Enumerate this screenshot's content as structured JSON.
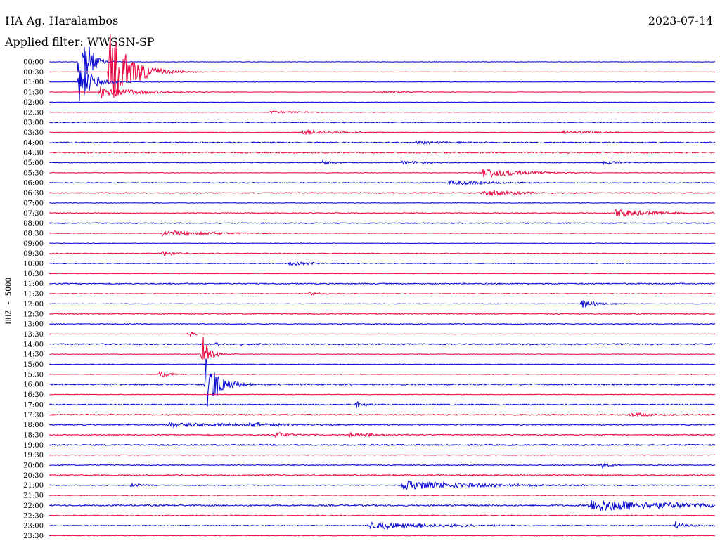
{
  "header": {
    "station": "HA Ag. Haralambos",
    "date": "2023-07-14",
    "filter": "Applied filter: WWSSN-SP"
  },
  "chart_data": {
    "type": "line",
    "title": "HA Ag. Haralambos",
    "ylabel": "HHZ - 5000",
    "colors": [
      "#0000d0",
      "#e8003c"
    ],
    "rows": [
      "00:00",
      "00:30",
      "01:00",
      "01:30",
      "02:00",
      "02:30",
      "03:00",
      "03:30",
      "04:00",
      "04:30",
      "05:00",
      "05:30",
      "06:00",
      "06:30",
      "07:00",
      "07:30",
      "08:00",
      "08:30",
      "09:00",
      "09:30",
      "10:00",
      "10:30",
      "11:00",
      "11:30",
      "12:00",
      "12:30",
      "13:00",
      "13:30",
      "14:00",
      "14:30",
      "15:00",
      "15:30",
      "16:00",
      "16:30",
      "17:00",
      "17:30",
      "18:00",
      "18:30",
      "19:00",
      "19:30",
      "20:00",
      "20:30",
      "21:00",
      "21:30",
      "22:00",
      "22:30",
      "23:00",
      "23:30"
    ],
    "noise": [
      0.3,
      0.3,
      0.3,
      0.3,
      0.3,
      0.3,
      0.6,
      0.4,
      0.8,
      1.0,
      0.5,
      0.4,
      0.6,
      0.8,
      0.4,
      0.6,
      0.7,
      0.4,
      0.4,
      0.6,
      0.5,
      0.4,
      0.8,
      0.5,
      0.4,
      0.7,
      0.6,
      0.4,
      0.9,
      0.4,
      0.5,
      0.4,
      1.0,
      0.5,
      0.8,
      0.9,
      0.8,
      0.7,
      1.0,
      0.5,
      0.6,
      0.9,
      0.6,
      0.5,
      1.0,
      0.6,
      0.6,
      0.5
    ],
    "events": [
      {
        "row": 0,
        "t": 0.045,
        "amp": 80,
        "dur": 0.012
      },
      {
        "row": 1,
        "t": 0.09,
        "amp": 60,
        "dur": 0.03
      },
      {
        "row": 2,
        "t": 0.045,
        "amp": 30,
        "dur": 0.02
      },
      {
        "row": 3,
        "t": 0.075,
        "amp": 10,
        "dur": 0.05
      },
      {
        "row": 3,
        "t": 0.5,
        "amp": 2,
        "dur": 0.04
      },
      {
        "row": 5,
        "t": 0.33,
        "amp": 2,
        "dur": 0.06
      },
      {
        "row": 7,
        "t": 0.38,
        "amp": 4,
        "dur": 0.05
      },
      {
        "row": 7,
        "t": 0.77,
        "amp": 3,
        "dur": 0.05
      },
      {
        "row": 8,
        "t": 0.55,
        "amp": 3,
        "dur": 0.04
      },
      {
        "row": 10,
        "t": 0.41,
        "amp": 3,
        "dur": 0.02
      },
      {
        "row": 10,
        "t": 0.53,
        "amp": 3,
        "dur": 0.04
      },
      {
        "row": 10,
        "t": 0.83,
        "amp": 3,
        "dur": 0.03
      },
      {
        "row": 11,
        "t": 0.65,
        "amp": 9,
        "dur": 0.05
      },
      {
        "row": 12,
        "t": 0.6,
        "amp": 4,
        "dur": 0.06
      },
      {
        "row": 13,
        "t": 0.65,
        "amp": 5,
        "dur": 0.05
      },
      {
        "row": 15,
        "t": 0.85,
        "amp": 6,
        "dur": 0.06
      },
      {
        "row": 17,
        "t": 0.17,
        "amp": 4,
        "dur": 0.08
      },
      {
        "row": 19,
        "t": 0.17,
        "amp": 5,
        "dur": 0.02
      },
      {
        "row": 20,
        "t": 0.36,
        "amp": 3,
        "dur": 0.04
      },
      {
        "row": 23,
        "t": 0.39,
        "amp": 3,
        "dur": 0.02
      },
      {
        "row": 24,
        "t": 0.8,
        "amp": 8,
        "dur": 0.02
      },
      {
        "row": 27,
        "t": 0.21,
        "amp": 5,
        "dur": 0.01
      },
      {
        "row": 28,
        "t": 0.25,
        "amp": 3,
        "dur": 0.03
      },
      {
        "row": 29,
        "t": 0.23,
        "amp": 30,
        "dur": 0.01
      },
      {
        "row": 31,
        "t": 0.165,
        "amp": 6,
        "dur": 0.015
      },
      {
        "row": 32,
        "t": 0.235,
        "amp": 40,
        "dur": 0.02
      },
      {
        "row": 34,
        "t": 0.46,
        "amp": 8,
        "dur": 0.01
      },
      {
        "row": 35,
        "t": 0.87,
        "amp": 3,
        "dur": 0.04
      },
      {
        "row": 36,
        "t": 0.18,
        "amp": 4,
        "dur": 0.1
      },
      {
        "row": 36,
        "t": 0.3,
        "amp": 3,
        "dur": 0.05
      },
      {
        "row": 37,
        "t": 0.34,
        "amp": 4,
        "dur": 0.03
      },
      {
        "row": 37,
        "t": 0.45,
        "amp": 3,
        "dur": 0.06
      },
      {
        "row": 40,
        "t": 0.83,
        "amp": 5,
        "dur": 0.01
      },
      {
        "row": 42,
        "t": 0.53,
        "amp": 7,
        "dur": 0.12
      },
      {
        "row": 42,
        "t": 0.12,
        "amp": 3,
        "dur": 0.02
      },
      {
        "row": 44,
        "t": 0.81,
        "amp": 11,
        "dur": 0.12
      },
      {
        "row": 46,
        "t": 0.48,
        "amp": 6,
        "dur": 0.1
      },
      {
        "row": 46,
        "t": 0.94,
        "amp": 8,
        "dur": 0.015
      }
    ]
  }
}
